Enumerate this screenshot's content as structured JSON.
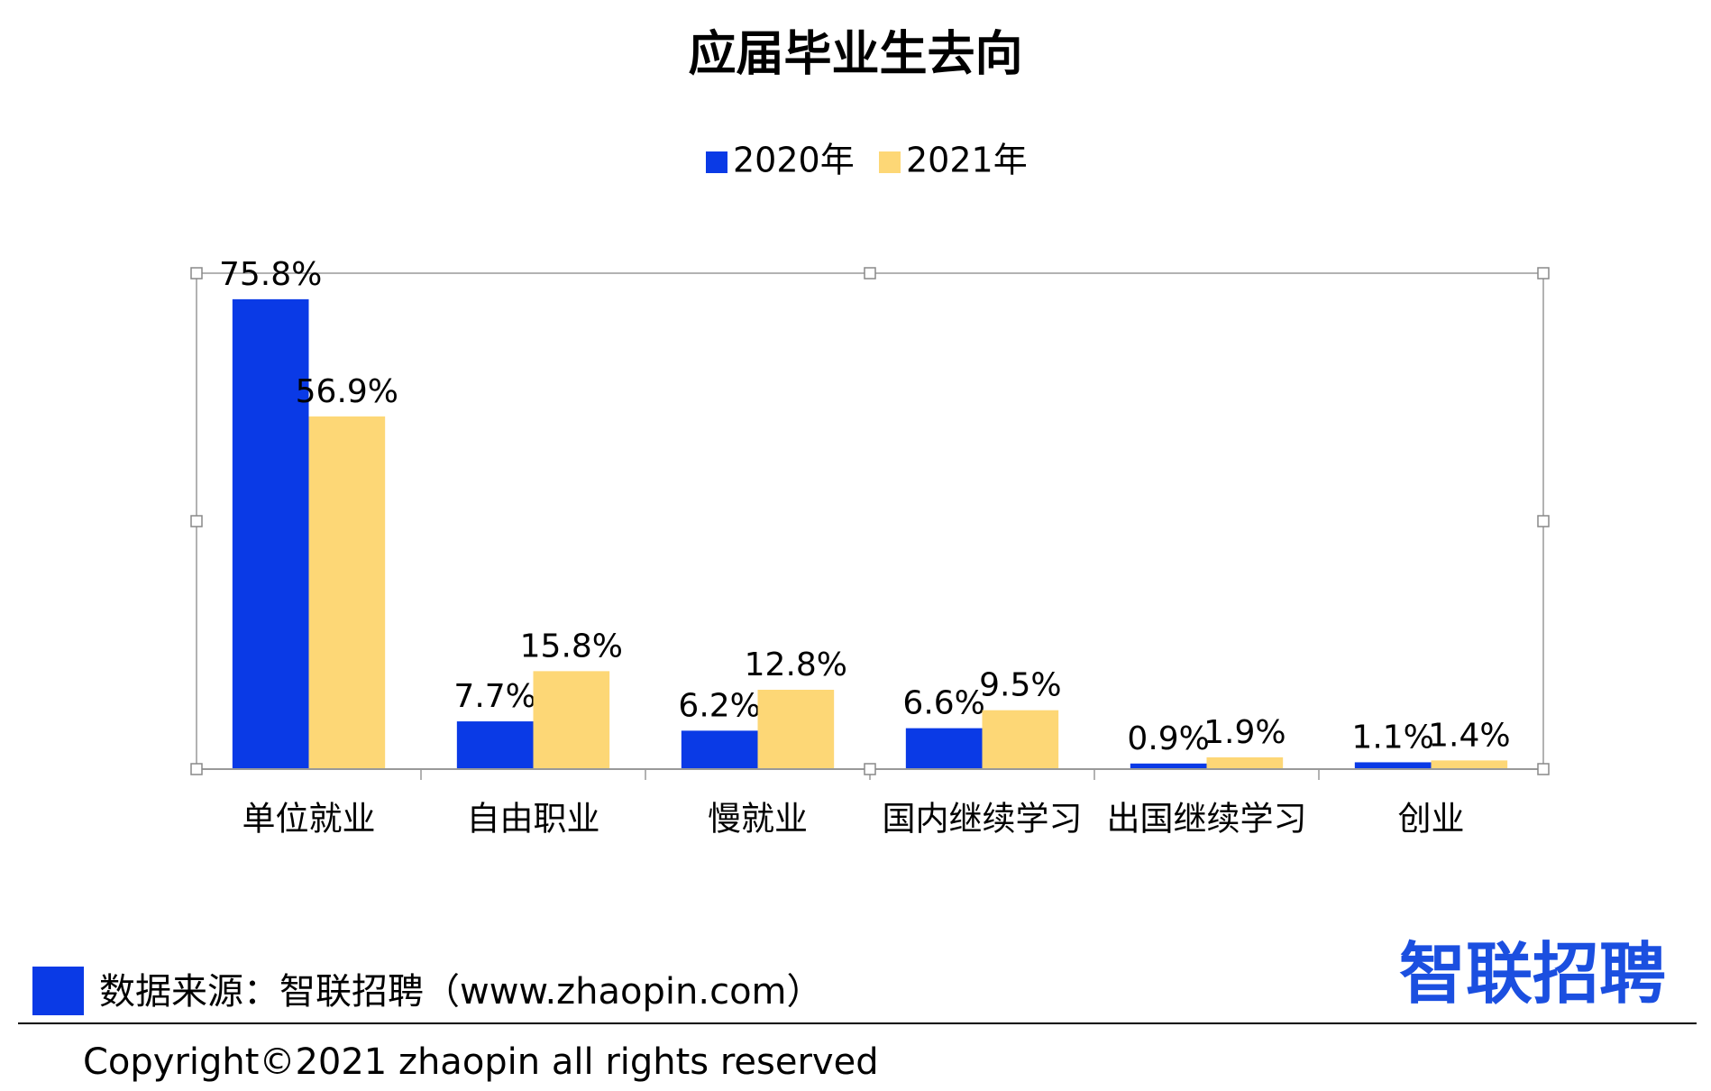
{
  "chart_data": {
    "type": "bar",
    "title": "应届毕业生去向",
    "categories": [
      "单位就业",
      "自由职业",
      "慢就业",
      "国内继续学习",
      "出国继续学习",
      "创业"
    ],
    "series": [
      {
        "name": "2020年",
        "color": "#0a3ae6",
        "values": [
          75.8,
          7.7,
          6.2,
          6.6,
          0.9,
          1.1
        ],
        "value_labels": [
          "75.8%",
          "7.7%",
          "6.2%",
          "6.6%",
          "0.9%",
          "1.1%"
        ]
      },
      {
        "name": "2021年",
        "color": "#fdd776",
        "values": [
          56.9,
          15.8,
          12.8,
          9.5,
          1.9,
          1.4
        ],
        "value_labels": [
          "56.9%",
          "15.8%",
          "12.8%",
          "9.5%",
          "1.9%",
          "1.4%"
        ]
      }
    ],
    "ylim": [
      0,
      80
    ],
    "legend": "top"
  },
  "footer": {
    "source": "数据来源：智联招聘（www.zhaopin.com）",
    "logo": "智联招聘",
    "copyright": "Copyright©2021 zhaopin all rights reserved"
  }
}
